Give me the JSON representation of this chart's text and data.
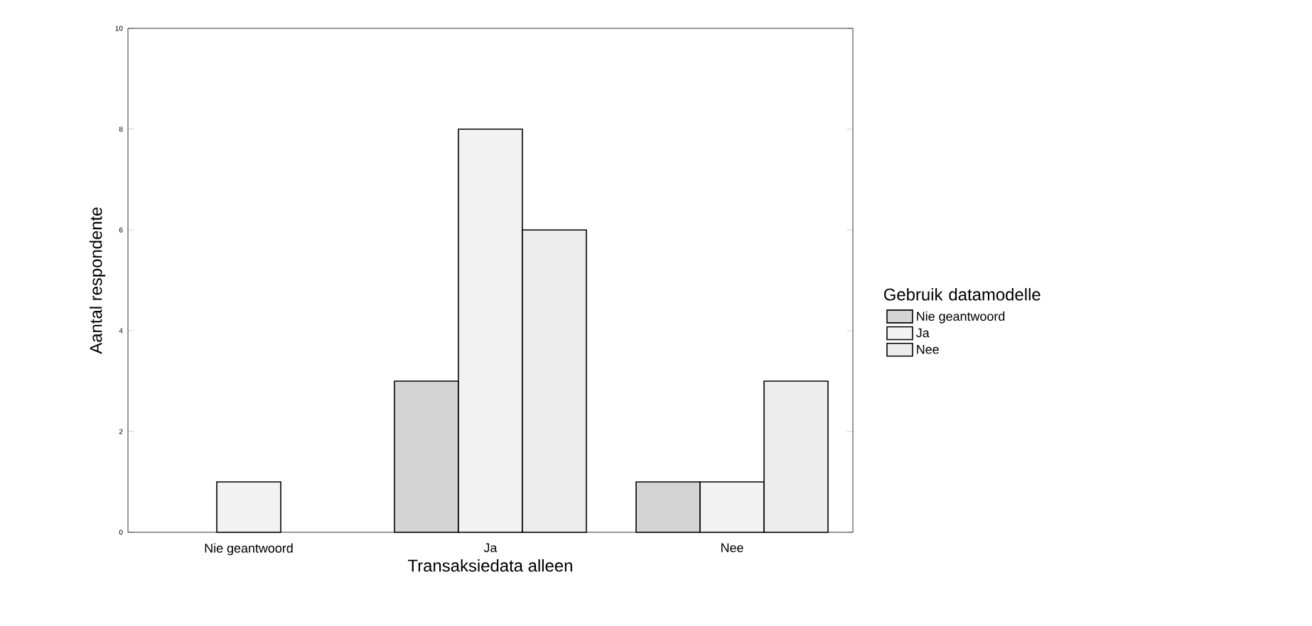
{
  "chart_data": {
    "type": "bar",
    "xlabel": "Transaksiedata alleen",
    "ylabel": "Aantal respondente",
    "legend_title": "Gebruik datamodelle",
    "categories": [
      "Nie geantwoord",
      "Ja",
      "Nee"
    ],
    "series": [
      {
        "name": "Nie geantwoord",
        "color": "#d4d4d4",
        "values": [
          null,
          3,
          1
        ]
      },
      {
        "name": "Ja",
        "color": "#f2f2f2",
        "values": [
          1,
          8,
          1
        ]
      },
      {
        "name": "Nee",
        "color": "#ececec",
        "values": [
          null,
          6,
          3
        ]
      }
    ],
    "ylim": [
      0,
      10
    ],
    "yticks": [
      0,
      2,
      4,
      6,
      8,
      10
    ],
    "legend": "right"
  }
}
